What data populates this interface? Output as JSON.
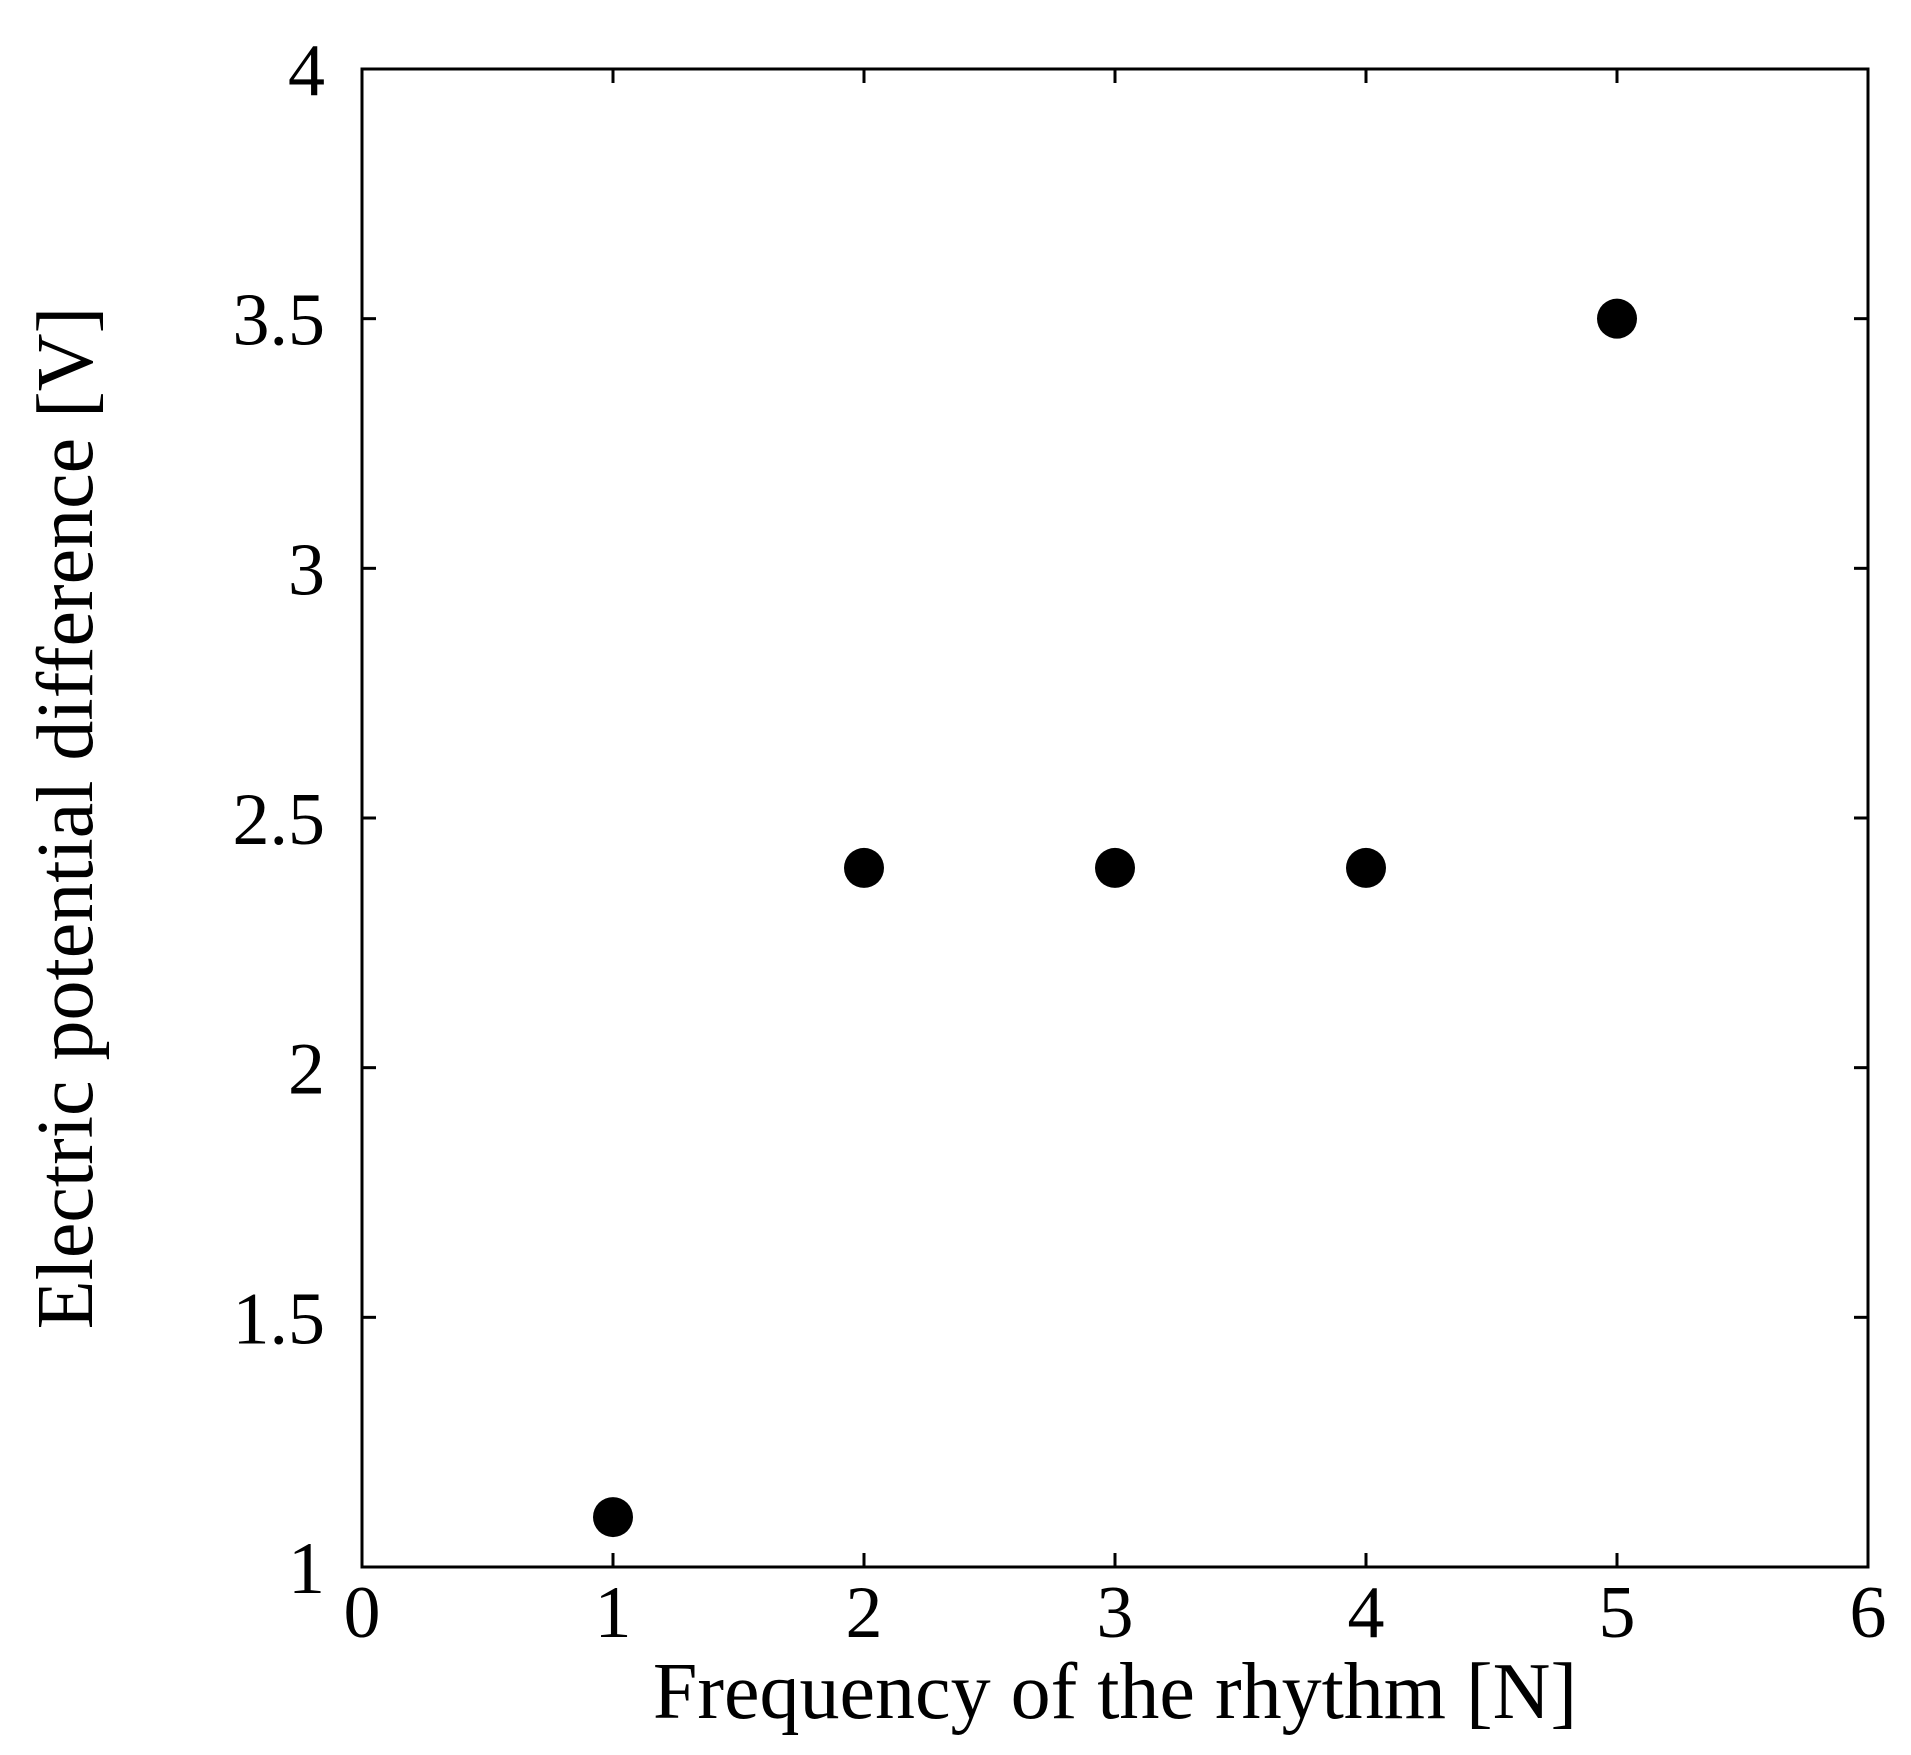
{
  "chart_data": {
    "type": "scatter",
    "title": "",
    "xlabel": "Frequency of the rhythm [N]",
    "ylabel": "Electric potential difference [V]",
    "xlim": [
      0,
      6
    ],
    "ylim": [
      1,
      4
    ],
    "xticks": [
      0,
      1,
      2,
      3,
      4,
      5,
      6
    ],
    "yticks": [
      1,
      1.5,
      2,
      2.5,
      3,
      3.5,
      4
    ],
    "xtick_labels": [
      "0",
      "1",
      "2",
      "3",
      "4",
      "5",
      "6"
    ],
    "ytick_labels": [
      "1",
      "1.5",
      "2",
      "2.5",
      "3",
      "3.5",
      "4"
    ],
    "grid": false,
    "legend": "none",
    "marker_color": "#000000",
    "series": [
      {
        "x": [
          1,
          2,
          3,
          4,
          5
        ],
        "y": [
          1.1,
          2.4,
          2.4,
          2.4,
          3.5
        ]
      }
    ]
  }
}
